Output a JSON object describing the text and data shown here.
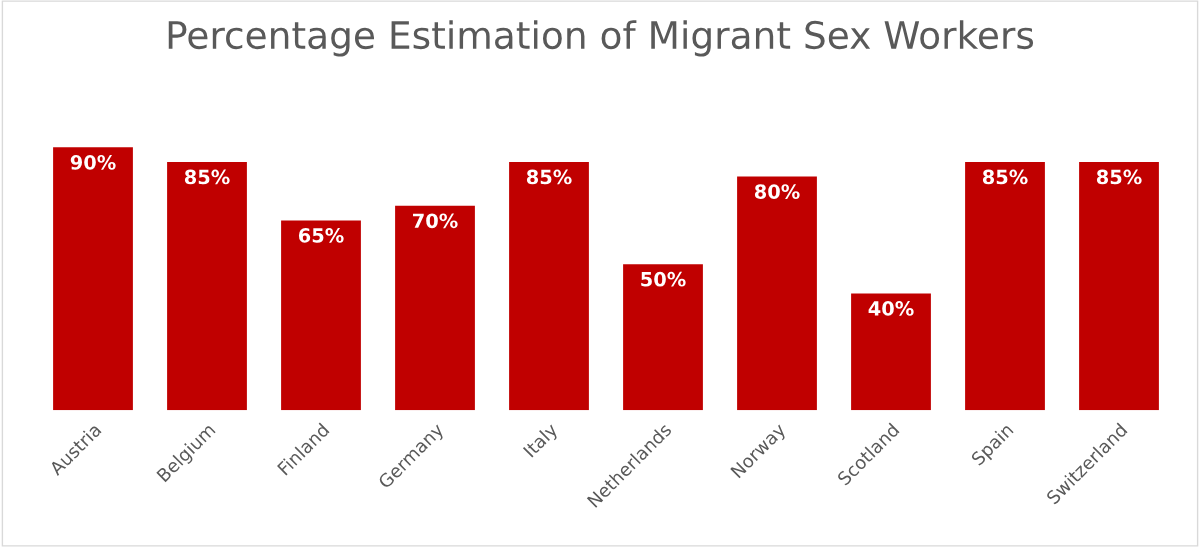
{
  "chart_data": {
    "type": "bar",
    "title": "Percentage Estimation of Migrant Sex Workers",
    "categories": [
      "Austria",
      "Belgium",
      "Finland",
      "Germany",
      "Italy",
      "Netherlands",
      "Norway",
      "Scotland",
      "Spain",
      "Switzerland"
    ],
    "values": [
      90,
      85,
      65,
      70,
      85,
      50,
      80,
      40,
      85,
      85
    ],
    "value_labels": [
      "90%",
      "85%",
      "65%",
      "70%",
      "85%",
      "50%",
      "80%",
      "40%",
      "85%",
      "85%"
    ],
    "color": "#c00000",
    "tick_labels": "x",
    "grid": false,
    "legend": false
  }
}
